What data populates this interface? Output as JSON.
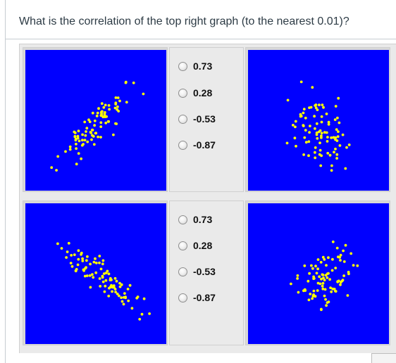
{
  "question": {
    "text": "What is the correlation of the top right graph (to the nearest 0.01)?"
  },
  "colors": {
    "plot_background": "#0000ff",
    "point": "#ffff00"
  },
  "questions": [
    {
      "options": [
        "0.73",
        "0.28",
        "-0.53",
        "-0.87"
      ],
      "selected": null
    },
    {
      "options": [
        "0.73",
        "0.28",
        "-0.53",
        "-0.87"
      ],
      "selected": null
    }
  ],
  "chart_data": [
    {
      "type": "scatter",
      "seed": 11,
      "n": 90,
      "correlation_direction": "strong-positive",
      "title": "",
      "xlabel": "",
      "ylabel": ""
    },
    {
      "type": "scatter",
      "seed": 23,
      "n": 90,
      "correlation_direction": "weak-negative",
      "title": "",
      "xlabel": "",
      "ylabel": ""
    },
    {
      "type": "scatter",
      "seed": 37,
      "n": 90,
      "correlation_direction": "strong-negative",
      "title": "",
      "xlabel": "",
      "ylabel": ""
    },
    {
      "type": "scatter",
      "seed": 51,
      "n": 90,
      "correlation_direction": "weak-positive",
      "title": "",
      "xlabel": "",
      "ylabel": ""
    }
  ]
}
